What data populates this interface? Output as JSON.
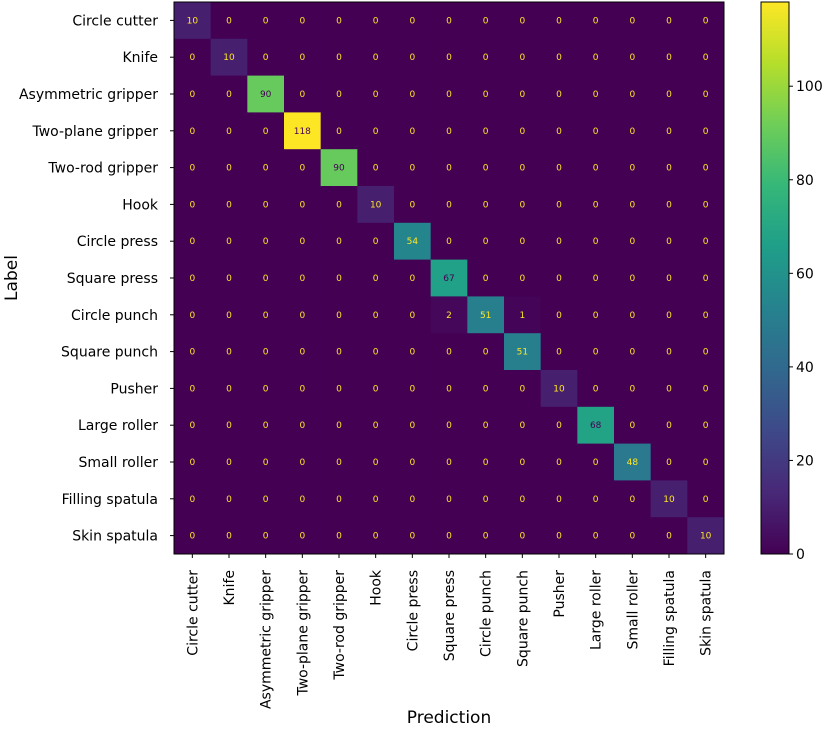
{
  "chart_data": {
    "type": "heatmap",
    "title": "",
    "xlabel": "Prediction",
    "ylabel": "Label",
    "labels": [
      "Circle cutter",
      "Knife",
      "Asymmetric gripper",
      "Two-plane gripper",
      "Two-rod gripper",
      "Hook",
      "Circle press",
      "Square press",
      "Circle punch",
      "Square punch",
      "Pusher",
      "Large roller",
      "Small roller",
      "Filling spatula",
      "Skin spatula"
    ],
    "matrix": [
      [
        10,
        0,
        0,
        0,
        0,
        0,
        0,
        0,
        0,
        0,
        0,
        0,
        0,
        0,
        0
      ],
      [
        0,
        10,
        0,
        0,
        0,
        0,
        0,
        0,
        0,
        0,
        0,
        0,
        0,
        0,
        0
      ],
      [
        0,
        0,
        90,
        0,
        0,
        0,
        0,
        0,
        0,
        0,
        0,
        0,
        0,
        0,
        0
      ],
      [
        0,
        0,
        0,
        118,
        0,
        0,
        0,
        0,
        0,
        0,
        0,
        0,
        0,
        0,
        0
      ],
      [
        0,
        0,
        0,
        0,
        90,
        0,
        0,
        0,
        0,
        0,
        0,
        0,
        0,
        0,
        0
      ],
      [
        0,
        0,
        0,
        0,
        0,
        10,
        0,
        0,
        0,
        0,
        0,
        0,
        0,
        0,
        0
      ],
      [
        0,
        0,
        0,
        0,
        0,
        0,
        54,
        0,
        0,
        0,
        0,
        0,
        0,
        0,
        0
      ],
      [
        0,
        0,
        0,
        0,
        0,
        0,
        0,
        67,
        0,
        0,
        0,
        0,
        0,
        0,
        0
      ],
      [
        0,
        0,
        0,
        0,
        0,
        0,
        0,
        2,
        51,
        1,
        0,
        0,
        0,
        0,
        0
      ],
      [
        0,
        0,
        0,
        0,
        0,
        0,
        0,
        0,
        0,
        51,
        0,
        0,
        0,
        0,
        0
      ],
      [
        0,
        0,
        0,
        0,
        0,
        0,
        0,
        0,
        0,
        0,
        10,
        0,
        0,
        0,
        0
      ],
      [
        0,
        0,
        0,
        0,
        0,
        0,
        0,
        0,
        0,
        0,
        0,
        68,
        0,
        0,
        0
      ],
      [
        0,
        0,
        0,
        0,
        0,
        0,
        0,
        0,
        0,
        0,
        0,
        0,
        48,
        0,
        0
      ],
      [
        0,
        0,
        0,
        0,
        0,
        0,
        0,
        0,
        0,
        0,
        0,
        0,
        0,
        10,
        0
      ],
      [
        0,
        0,
        0,
        0,
        0,
        0,
        0,
        0,
        0,
        0,
        0,
        0,
        0,
        0,
        10
      ]
    ],
    "colormap": "viridis",
    "vmin": 0,
    "vmax": 118,
    "colorbar_ticks": [
      0,
      20,
      40,
      60,
      80,
      100
    ],
    "colorbar_tick_labels": [
      "0",
      "20",
      "40",
      "60",
      "80",
      "100"
    ]
  }
}
